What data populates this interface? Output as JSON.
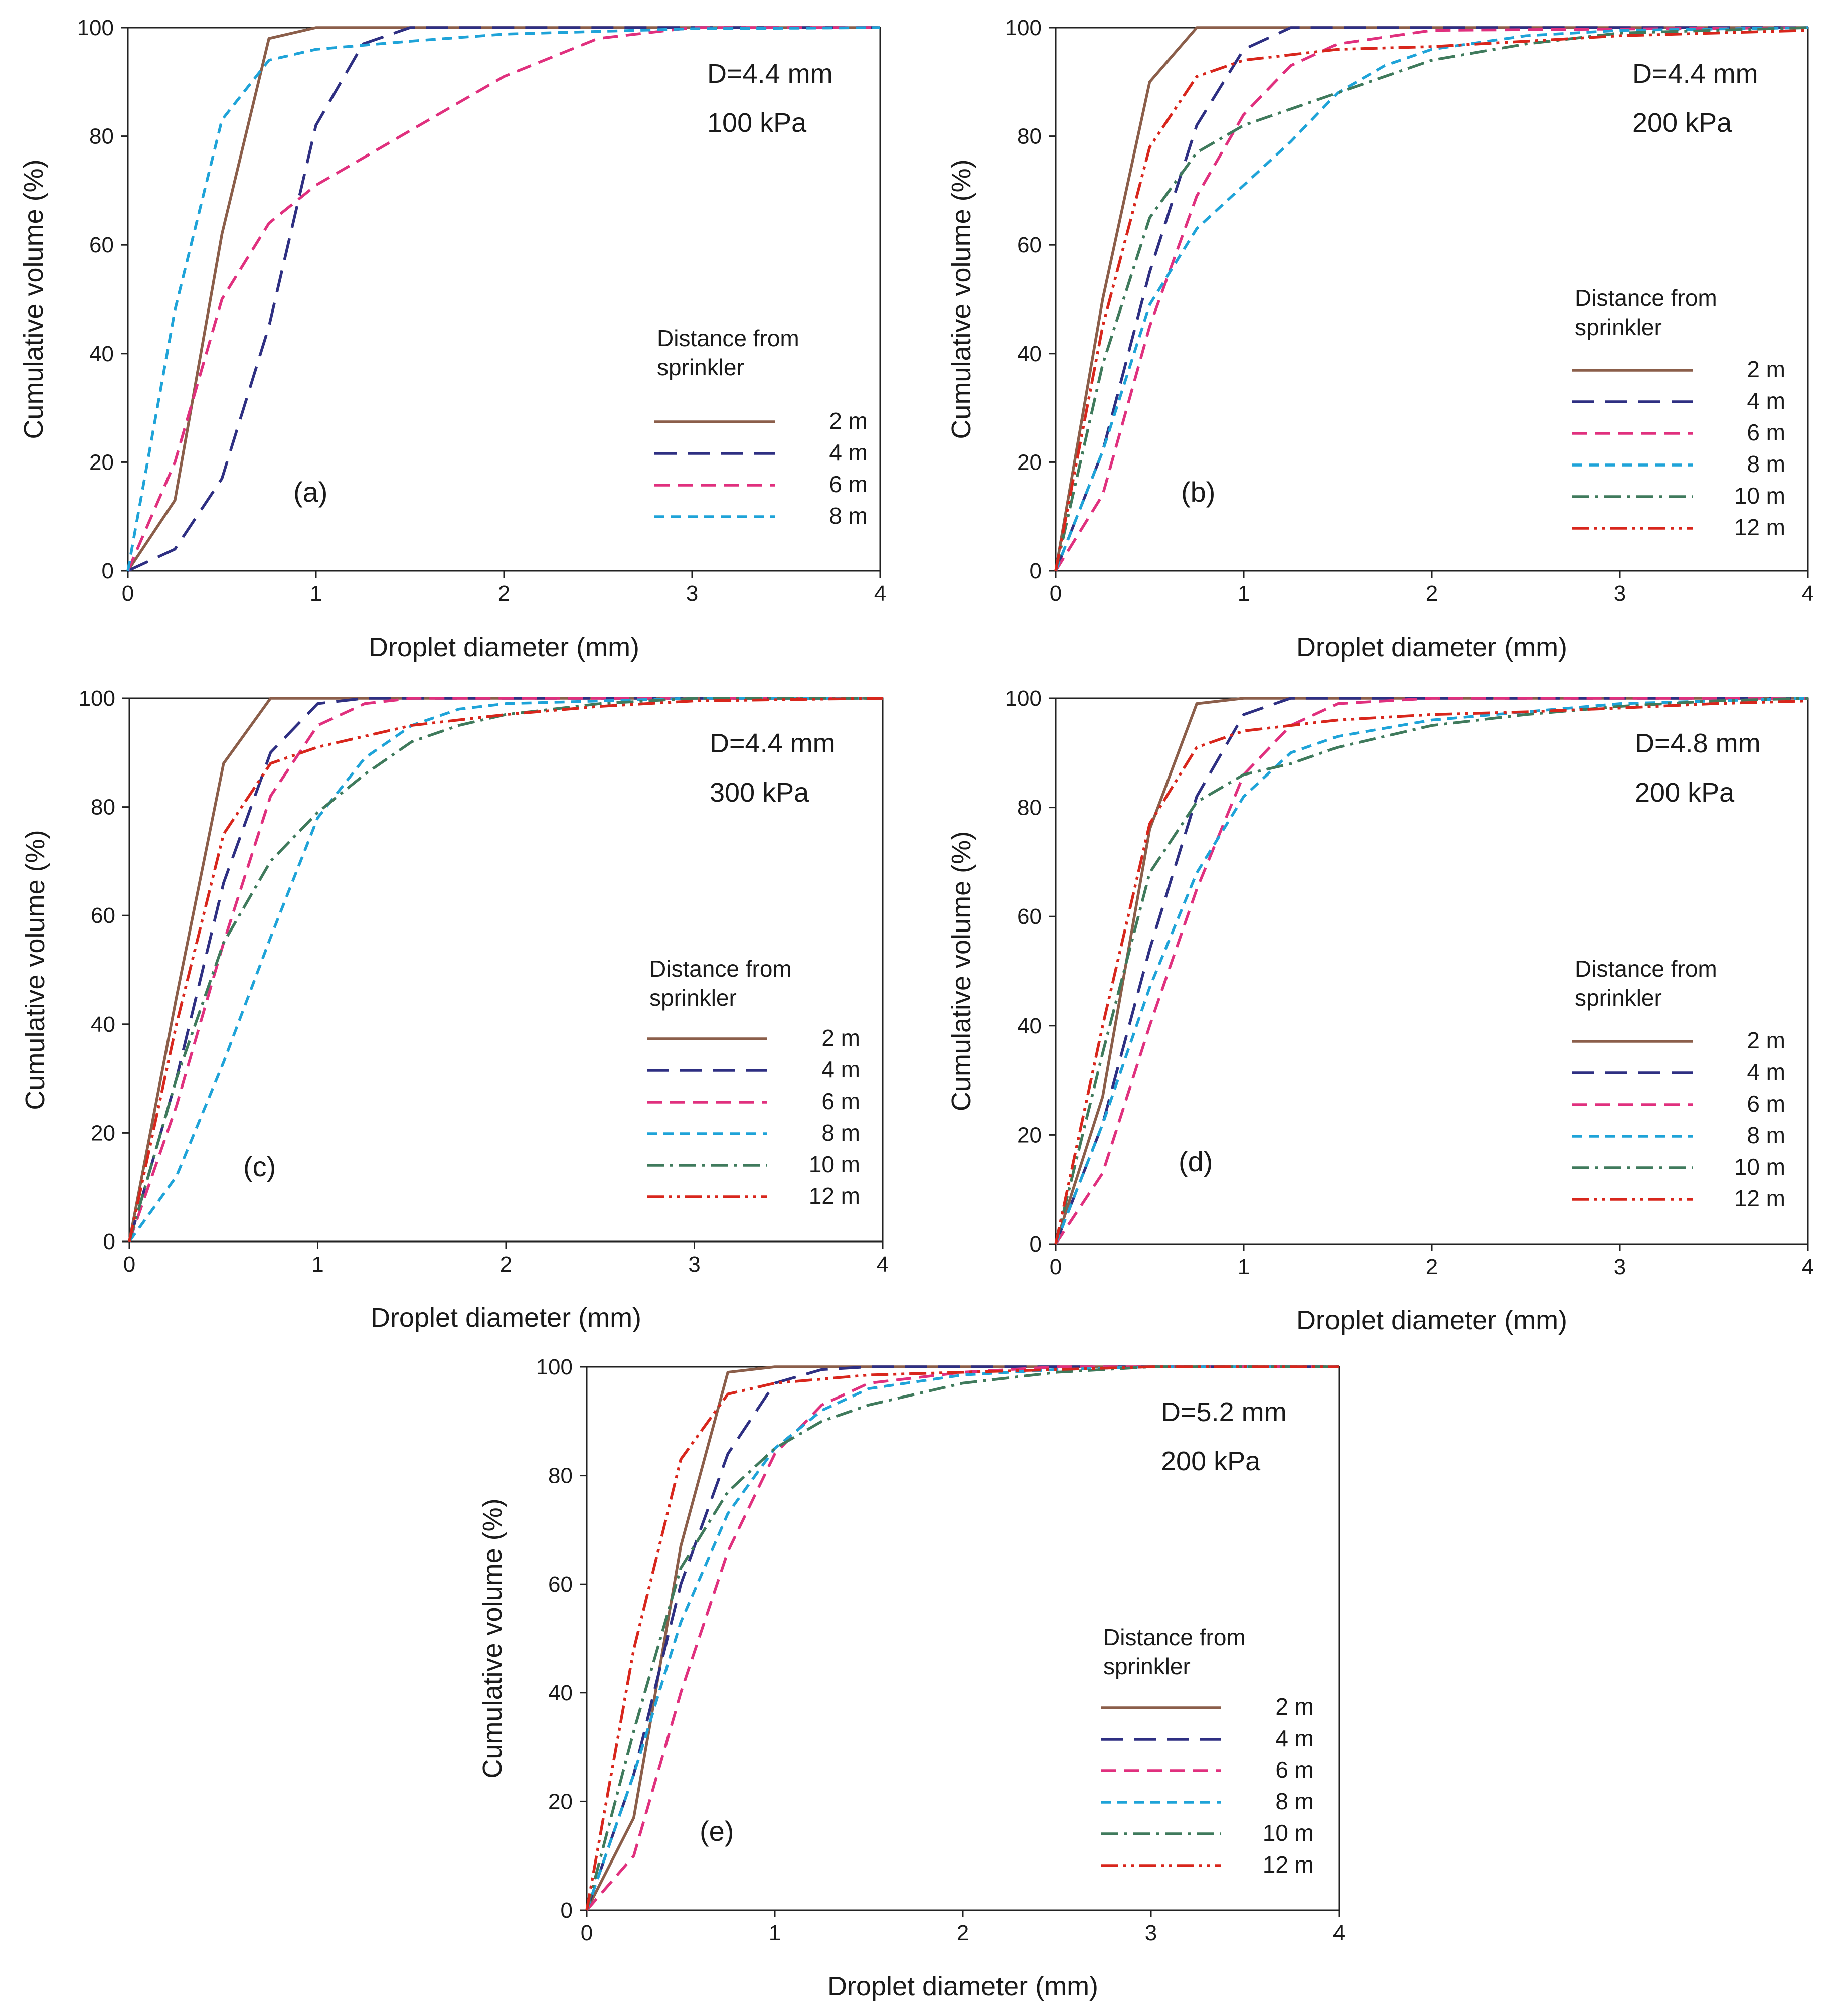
{
  "figure": {
    "series_styles": [
      {
        "key": "2m",
        "color": "#8b5e4a",
        "dash": "solid"
      },
      {
        "key": "4m",
        "color": "#2e2f82",
        "dash": "long-dash"
      },
      {
        "key": "6m",
        "color": "#e0307e",
        "dash": "dash"
      },
      {
        "key": "8m",
        "color": "#1ea3d8",
        "dash": "short-dash"
      },
      {
        "key": "10m",
        "color": "#3f7a5c",
        "dash": "dash-dot"
      },
      {
        "key": "12m",
        "color": "#d8261c",
        "dash": "dash-dot-dot"
      }
    ]
  },
  "chart_data": [
    {
      "type": "line",
      "panel": "(a)",
      "info_lines": [
        "D=4.4 mm",
        "100 kPa"
      ],
      "legend_title": [
        "Distance from",
        "sprinkler"
      ],
      "xlabel": "Droplet diameter (mm)",
      "ylabel": "Cumulative volume (%)",
      "xlim": [
        0,
        4
      ],
      "ylim": [
        0,
        100
      ],
      "xticks": [
        "0",
        "1",
        "2",
        "3",
        "4"
      ],
      "yticks": [
        "0",
        "20",
        "40",
        "60",
        "80",
        "100"
      ],
      "series": [
        {
          "name": "2 m",
          "x": [
            0,
            0.25,
            0.5,
            0.75,
            1.0,
            4
          ],
          "y": [
            0,
            13,
            62,
            98,
            100,
            100
          ]
        },
        {
          "name": "4 m",
          "x": [
            0,
            0.25,
            0.5,
            0.75,
            1.0,
            1.25,
            1.5,
            2.0,
            4
          ],
          "y": [
            0,
            4,
            17,
            45,
            82,
            97,
            100,
            100,
            100
          ]
        },
        {
          "name": "6 m",
          "x": [
            0,
            0.25,
            0.5,
            0.75,
            1.0,
            1.5,
            2.0,
            2.5,
            3.0,
            4
          ],
          "y": [
            0,
            20,
            50,
            64,
            71,
            81,
            91,
            98,
            100,
            100
          ]
        },
        {
          "name": "8 m",
          "x": [
            0,
            0.25,
            0.5,
            0.75,
            1.0,
            1.5,
            2.0,
            3.0,
            4
          ],
          "y": [
            0,
            48,
            83,
            94,
            96,
            97.5,
            98.8,
            99.8,
            100
          ]
        }
      ]
    },
    {
      "type": "line",
      "panel": "(b)",
      "info_lines": [
        "D=4.4 mm",
        "200 kPa"
      ],
      "legend_title": [
        "Distance from",
        "sprinkler"
      ],
      "xlabel": "Droplet diameter (mm)",
      "ylabel": "Cumulative volume (%)",
      "xlim": [
        0,
        4
      ],
      "ylim": [
        0,
        100
      ],
      "xticks": [
        "0",
        "1",
        "2",
        "3",
        "4"
      ],
      "yticks": [
        "0",
        "20",
        "40",
        "60",
        "80",
        "100"
      ],
      "series": [
        {
          "name": "2 m",
          "x": [
            0,
            0.25,
            0.5,
            0.75,
            1.0,
            4
          ],
          "y": [
            0,
            50,
            90,
            100,
            100,
            100
          ]
        },
        {
          "name": "4 m",
          "x": [
            0,
            0.25,
            0.5,
            0.75,
            1.0,
            1.25,
            1.5,
            4
          ],
          "y": [
            0,
            22,
            55,
            82,
            96,
            100,
            100,
            100
          ]
        },
        {
          "name": "6 m",
          "x": [
            0,
            0.25,
            0.5,
            0.75,
            1.0,
            1.25,
            1.5,
            2.0,
            4
          ],
          "y": [
            0,
            14,
            45,
            69,
            84,
            93,
            97,
            99.5,
            100
          ]
        },
        {
          "name": "8 m",
          "x": [
            0,
            0.25,
            0.5,
            0.75,
            1.0,
            1.25,
            1.5,
            1.75,
            2.0,
            2.5,
            3.0,
            4
          ],
          "y": [
            0,
            22,
            49,
            63,
            71,
            79,
            88,
            93,
            96,
            98.5,
            99.5,
            100
          ]
        },
        {
          "name": "10 m",
          "x": [
            0,
            0.25,
            0.5,
            0.75,
            1.0,
            1.25,
            1.5,
            1.75,
            2.0,
            2.5,
            3.0,
            4
          ],
          "y": [
            0,
            38,
            65,
            77,
            82,
            85,
            88,
            91,
            94,
            97,
            99,
            100
          ]
        },
        {
          "name": "12 m",
          "x": [
            0,
            0.25,
            0.5,
            0.75,
            1.0,
            1.5,
            2.0,
            2.5,
            3.0,
            4
          ],
          "y": [
            0,
            45,
            78,
            91,
            94,
            96,
            96.5,
            97.5,
            98.5,
            99.5
          ]
        }
      ]
    },
    {
      "type": "line",
      "panel": "(c)",
      "info_lines": [
        "D=4.4 mm",
        "300 kPa"
      ],
      "legend_title": [
        "Distance from",
        "sprinkler"
      ],
      "xlabel": "Droplet diameter (mm)",
      "ylabel": "Cumulative volume (%)",
      "xlim": [
        0,
        4
      ],
      "ylim": [
        0,
        100
      ],
      "xticks": [
        "0",
        "1",
        "2",
        "3",
        "4"
      ],
      "yticks": [
        "0",
        "20",
        "40",
        "60",
        "80",
        "100"
      ],
      "series": [
        {
          "name": "2 m",
          "x": [
            0,
            0.25,
            0.5,
            0.75,
            1.0,
            4
          ],
          "y": [
            0,
            45,
            88,
            100,
            100,
            100
          ]
        },
        {
          "name": "4 m",
          "x": [
            0,
            0.25,
            0.5,
            0.75,
            1.0,
            1.25,
            4
          ],
          "y": [
            0,
            30,
            66,
            90,
            99,
            100,
            100
          ]
        },
        {
          "name": "6 m",
          "x": [
            0,
            0.25,
            0.5,
            0.75,
            1.0,
            1.25,
            1.5,
            4
          ],
          "y": [
            0,
            25,
            55,
            82,
            95,
            99,
            100,
            100
          ]
        },
        {
          "name": "8 m",
          "x": [
            0,
            0.25,
            0.5,
            0.75,
            1.0,
            1.25,
            1.5,
            1.75,
            2.0,
            2.5,
            3.0,
            4
          ],
          "y": [
            0,
            12,
            33,
            56,
            78,
            89,
            95,
            98,
            99,
            99.5,
            100,
            100
          ]
        },
        {
          "name": "10 m",
          "x": [
            0,
            0.25,
            0.5,
            0.75,
            1.0,
            1.25,
            1.5,
            1.75,
            2.0,
            2.5,
            3.0,
            4
          ],
          "y": [
            0,
            30,
            55,
            70,
            79,
            86,
            92,
            95,
            97,
            99,
            100,
            100
          ]
        },
        {
          "name": "12 m",
          "x": [
            0,
            0.25,
            0.5,
            0.75,
            1.0,
            1.25,
            1.5,
            2.0,
            2.5,
            3.0,
            4
          ],
          "y": [
            0,
            40,
            75,
            88,
            91,
            93,
            95,
            97,
            98.5,
            99.5,
            100
          ]
        }
      ]
    },
    {
      "type": "line",
      "panel": "(d)",
      "info_lines": [
        "D=4.8 mm",
        "200 kPa"
      ],
      "legend_title": [
        "Distance from",
        "sprinkler"
      ],
      "xlabel": "Droplet diameter (mm)",
      "ylabel": "Cumulative volume (%)",
      "xlim": [
        0,
        4
      ],
      "ylim": [
        0,
        100
      ],
      "xticks": [
        "0",
        "1",
        "2",
        "3",
        "4"
      ],
      "yticks": [
        "0",
        "20",
        "40",
        "60",
        "80",
        "100"
      ],
      "series": [
        {
          "name": "2 m",
          "x": [
            0,
            0.25,
            0.5,
            0.75,
            1.0,
            4
          ],
          "y": [
            0,
            27,
            76,
            99,
            100,
            100
          ]
        },
        {
          "name": "4 m",
          "x": [
            0,
            0.25,
            0.5,
            0.75,
            1.0,
            1.25,
            1.5,
            4
          ],
          "y": [
            0,
            22,
            54,
            82,
            97,
            100,
            100,
            100
          ]
        },
        {
          "name": "6 m",
          "x": [
            0,
            0.25,
            0.5,
            0.75,
            1.0,
            1.25,
            1.5,
            2.0,
            4
          ],
          "y": [
            0,
            13,
            40,
            65,
            86,
            95,
            99,
            100,
            100
          ]
        },
        {
          "name": "8 m",
          "x": [
            0,
            0.25,
            0.5,
            0.75,
            1.0,
            1.25,
            1.5,
            2.0,
            2.5,
            3.0,
            4
          ],
          "y": [
            0,
            22,
            47,
            68,
            82,
            90,
            93,
            96,
            97.5,
            99,
            100
          ]
        },
        {
          "name": "10 m",
          "x": [
            0,
            0.25,
            0.5,
            0.75,
            1.0,
            1.25,
            1.5,
            2.0,
            2.5,
            3.0,
            3.5,
            4
          ],
          "y": [
            0,
            35,
            68,
            81,
            86,
            88,
            91,
            95,
            97,
            98.5,
            99.5,
            100
          ]
        },
        {
          "name": "12 m",
          "x": [
            0,
            0.25,
            0.5,
            0.75,
            1.0,
            1.5,
            2.0,
            2.5,
            3.0,
            3.5,
            4
          ],
          "y": [
            0,
            40,
            77,
            91,
            94,
            96,
            97,
            97.5,
            98.2,
            99,
            99.5
          ]
        }
      ]
    },
    {
      "type": "line",
      "panel": "(e)",
      "info_lines": [
        "D=5.2 mm",
        "200 kPa"
      ],
      "legend_title": [
        "Distance from",
        "sprinkler"
      ],
      "xlabel": "Droplet diameter (mm)",
      "ylabel": "Cumulative volume (%)",
      "xlim": [
        0,
        4
      ],
      "ylim": [
        0,
        100
      ],
      "xticks": [
        "0",
        "1",
        "2",
        "3",
        "4"
      ],
      "yticks": [
        "0",
        "20",
        "40",
        "60",
        "80",
        "100"
      ],
      "series": [
        {
          "name": "2 m",
          "x": [
            0,
            0.25,
            0.5,
            0.75,
            1.0,
            4
          ],
          "y": [
            0,
            17,
            67,
            99,
            100,
            100
          ]
        },
        {
          "name": "4 m",
          "x": [
            0,
            0.25,
            0.5,
            0.75,
            1.0,
            1.25,
            1.5,
            4
          ],
          "y": [
            0,
            25,
            60,
            84,
            97,
            99.5,
            100,
            100
          ]
        },
        {
          "name": "6 m",
          "x": [
            0,
            0.25,
            0.5,
            0.75,
            1.0,
            1.25,
            1.5,
            2.0,
            2.5,
            4
          ],
          "y": [
            0,
            10,
            40,
            66,
            84,
            93,
            97,
            99,
            100,
            100
          ]
        },
        {
          "name": "8 m",
          "x": [
            0,
            0.25,
            0.5,
            0.75,
            1.0,
            1.25,
            1.5,
            2.0,
            2.5,
            3.0,
            4
          ],
          "y": [
            0,
            25,
            53,
            73,
            85,
            92,
            96,
            98.5,
            99.5,
            100,
            100
          ]
        },
        {
          "name": "10 m",
          "x": [
            0,
            0.25,
            0.5,
            0.75,
            1.0,
            1.25,
            1.5,
            2.0,
            2.5,
            3.0,
            4
          ],
          "y": [
            0,
            33,
            63,
            77,
            85,
            90,
            93,
            97,
            99,
            100,
            100
          ]
        },
        {
          "name": "12 m",
          "x": [
            0,
            0.25,
            0.5,
            0.75,
            1.0,
            1.5,
            2.0,
            2.5,
            3.0,
            4
          ],
          "y": [
            0,
            48,
            83,
            95,
            97,
            98.5,
            99,
            99.5,
            100,
            100
          ]
        }
      ]
    }
  ]
}
